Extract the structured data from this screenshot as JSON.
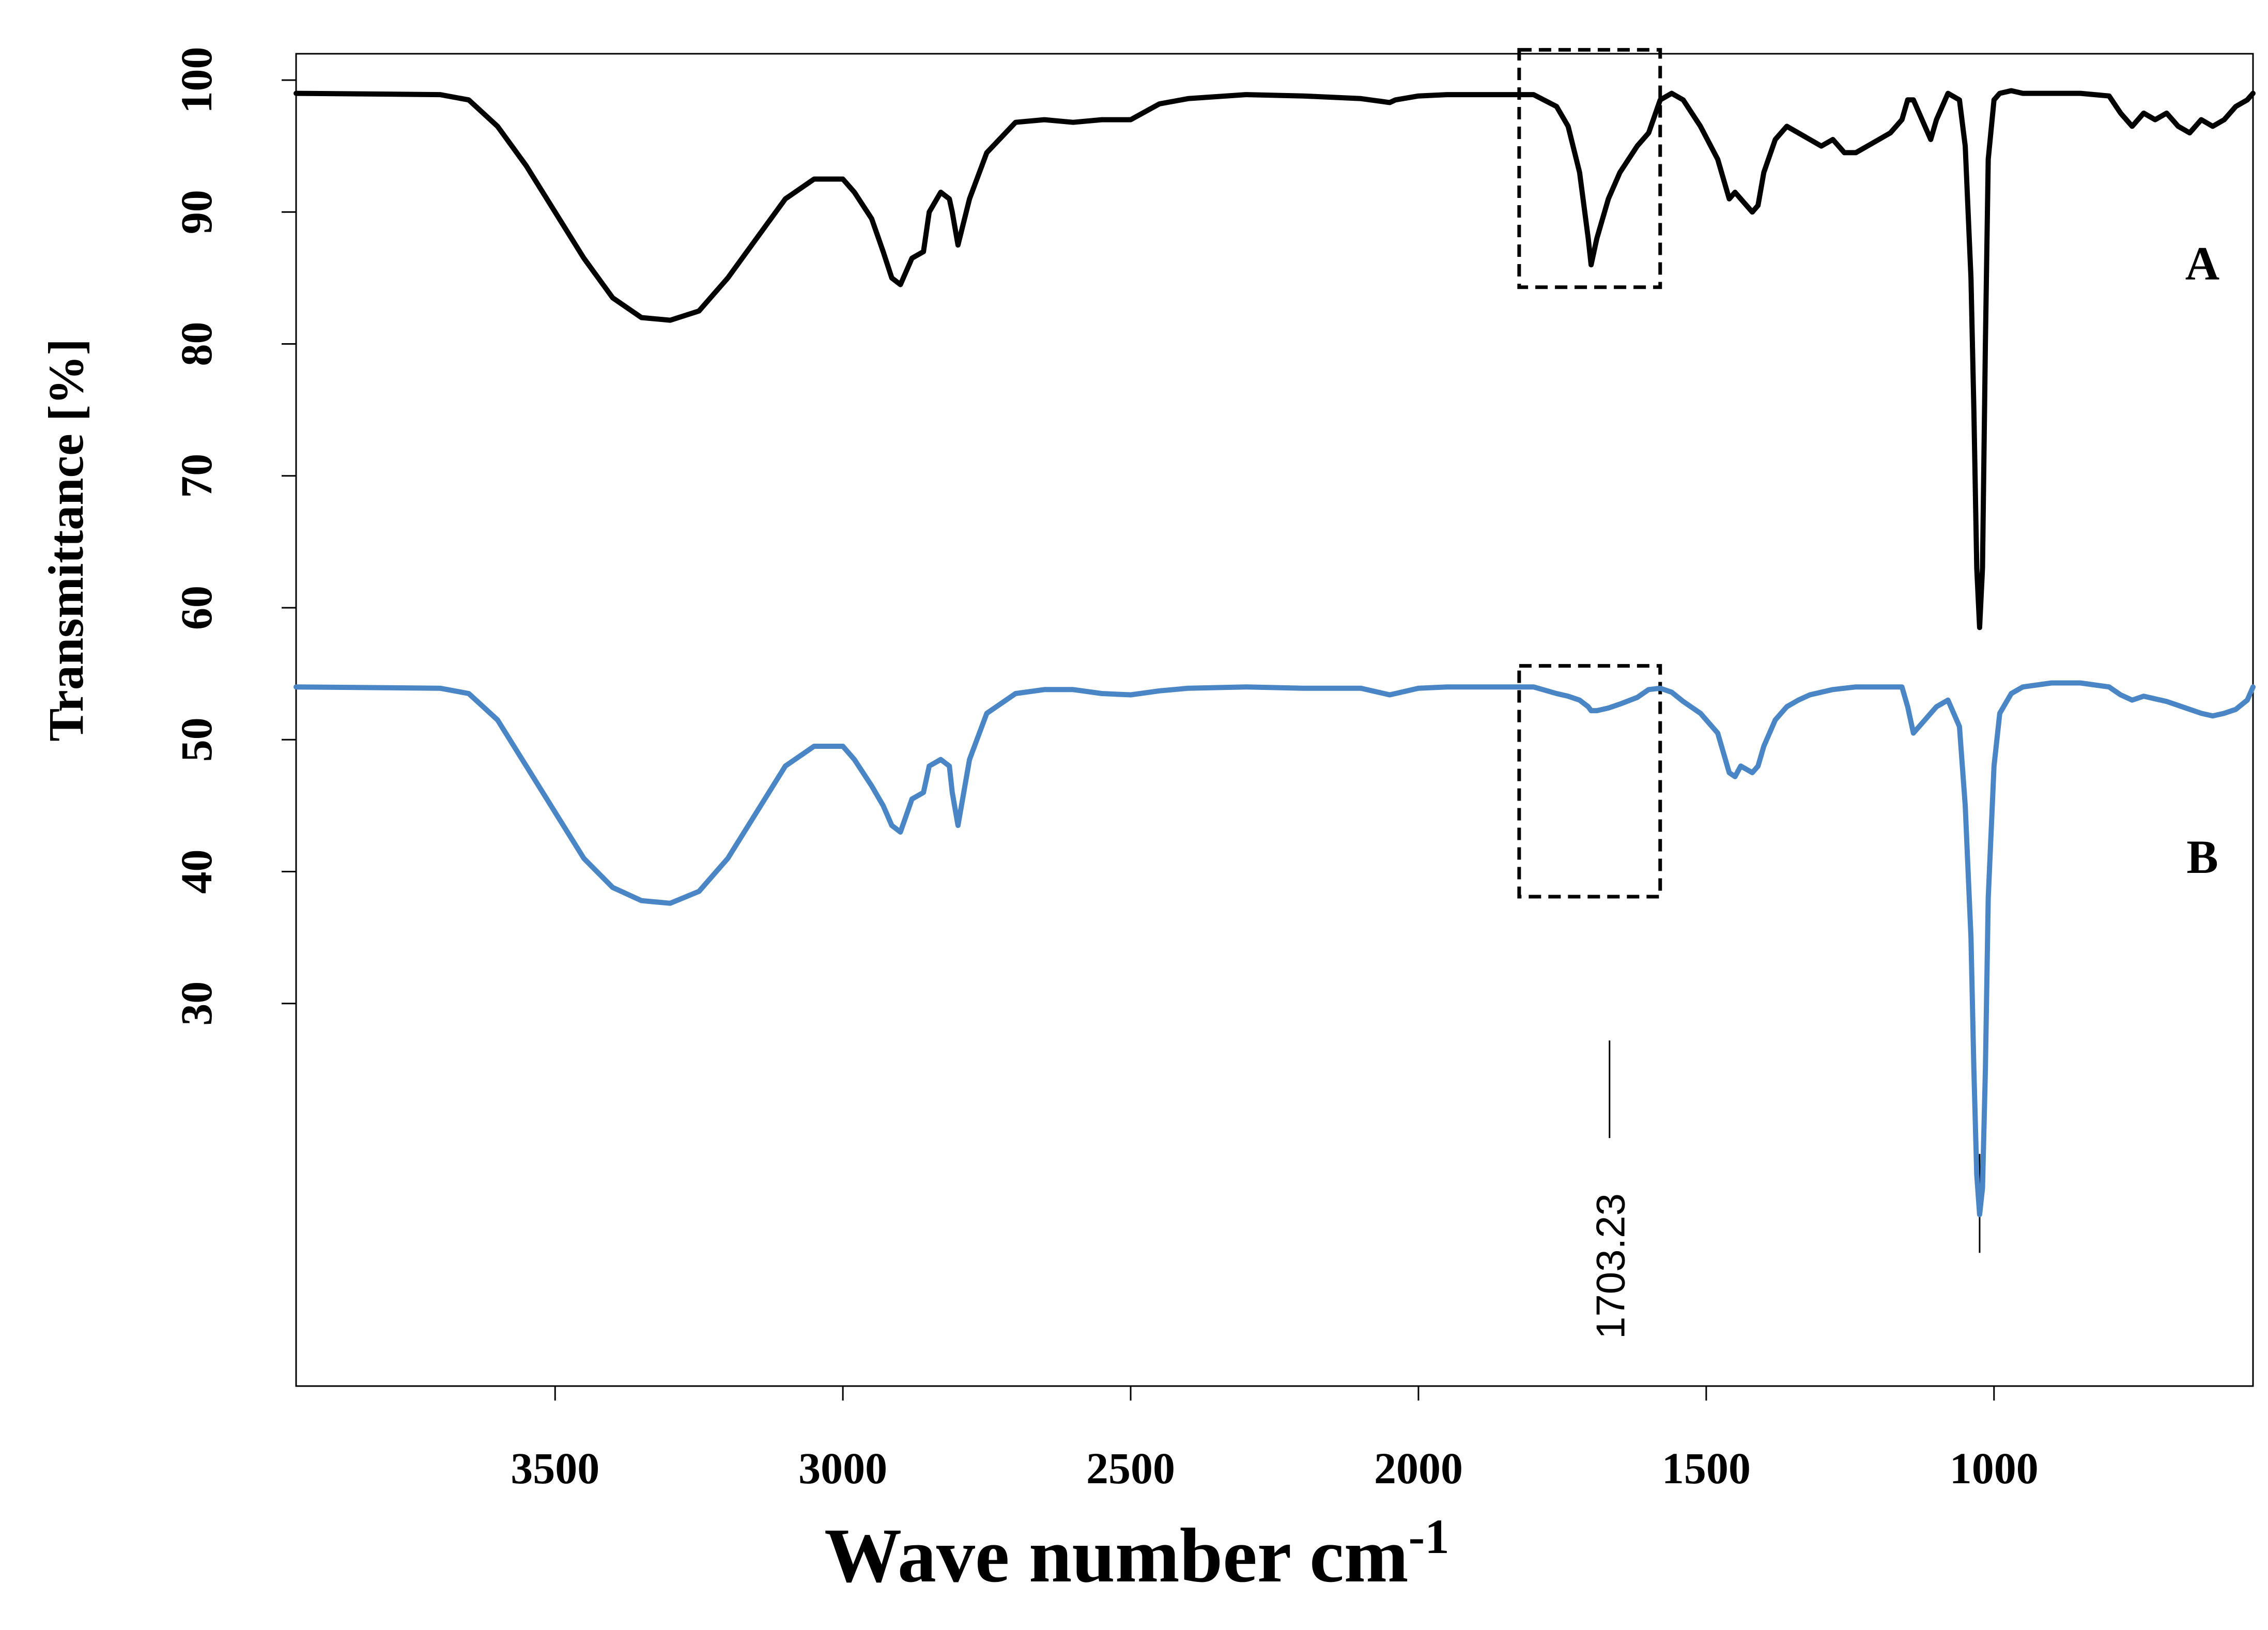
{
  "chart_data": {
    "type": "line",
    "title": "",
    "xlabel": "Wave number cm",
    "xlabel_superscript": "-1",
    "ylabel": "Transmittance [%]",
    "xlim": [
      3950,
      550
    ],
    "ylim": [
      1,
      102
    ],
    "x_reversed": true,
    "grid": false,
    "x_ticks": [
      3500,
      3000,
      2500,
      2000,
      1500,
      1000
    ],
    "x_tick_labels": [
      "3500",
      "3000",
      "2500",
      "2000",
      "1500",
      "1000"
    ],
    "y_ticks": [
      100,
      90,
      80,
      70,
      60,
      50,
      40,
      30
    ],
    "y_tick_labels": [
      "100",
      "90",
      "80",
      "70",
      "60",
      "50",
      "40",
      "30"
    ],
    "series": [
      {
        "name": "A",
        "label": "A",
        "color": "#000000",
        "x": [
          3950,
          3700,
          3650,
          3600,
          3550,
          3500,
          3450,
          3400,
          3350,
          3300,
          3250,
          3200,
          3150,
          3100,
          3050,
          3000,
          2980,
          2950,
          2930,
          2915,
          2900,
          2880,
          2860,
          2850,
          2830,
          2815,
          2810,
          2800,
          2780,
          2750,
          2700,
          2650,
          2600,
          2550,
          2500,
          2450,
          2400,
          2300,
          2200,
          2100,
          2050,
          2040,
          2000,
          1950,
          1850,
          1800,
          1760,
          1740,
          1720,
          1705,
          1700,
          1690,
          1670,
          1650,
          1620,
          1600,
          1580,
          1560,
          1540,
          1510,
          1480,
          1460,
          1450,
          1440,
          1420,
          1410,
          1400,
          1380,
          1360,
          1340,
          1320,
          1300,
          1280,
          1260,
          1240,
          1220,
          1200,
          1180,
          1160,
          1150,
          1140,
          1120,
          1110,
          1100,
          1080,
          1060,
          1050,
          1040,
          1035,
          1030,
          1025,
          1020,
          1015,
          1010,
          1000,
          990,
          970,
          950,
          900,
          850,
          800,
          780,
          760,
          740,
          720,
          700,
          680,
          660,
          640,
          620,
          600,
          580,
          560,
          550
        ],
        "y": [
          99.0,
          98.9,
          98.5,
          96.5,
          93.5,
          90.0,
          86.5,
          83.5,
          82.0,
          81.8,
          82.5,
          85.0,
          88.0,
          91.0,
          92.5,
          92.5,
          91.5,
          89.5,
          87.0,
          85.0,
          84.5,
          86.5,
          87.0,
          90.0,
          91.5,
          91.0,
          90.0,
          87.5,
          91.0,
          94.5,
          96.8,
          97.0,
          96.8,
          97.0,
          97.0,
          98.2,
          98.6,
          98.9,
          98.8,
          98.6,
          98.3,
          98.5,
          98.8,
          98.9,
          98.9,
          98.9,
          98.0,
          96.5,
          93.0,
          88.0,
          86.0,
          88.0,
          91.0,
          93.0,
          95.0,
          96.0,
          98.5,
          99.0,
          98.5,
          96.5,
          94.0,
          91.0,
          91.5,
          91.0,
          90.0,
          90.5,
          93.0,
          95.5,
          96.5,
          96.0,
          95.5,
          95.0,
          95.5,
          94.5,
          94.5,
          95.0,
          95.5,
          96.0,
          97.0,
          98.5,
          98.5,
          96.5,
          95.5,
          97.0,
          99.0,
          98.5,
          95.0,
          85.0,
          75.0,
          63.0,
          58.5,
          63.0,
          80.0,
          94.0,
          98.5,
          99.0,
          99.2,
          99.0,
          99.0,
          99.0,
          98.8,
          97.5,
          96.5,
          97.5,
          97.0,
          97.5,
          96.5,
          96.0,
          97.0,
          96.5,
          97.0,
          98.0,
          98.5,
          99.0
        ]
      },
      {
        "name": "B",
        "label": "B",
        "color": "#4a86c5",
        "x": [
          3950,
          3700,
          3650,
          3600,
          3550,
          3500,
          3450,
          3400,
          3350,
          3300,
          3250,
          3200,
          3150,
          3100,
          3050,
          3000,
          2980,
          2950,
          2930,
          2915,
          2900,
          2880,
          2860,
          2850,
          2830,
          2815,
          2810,
          2800,
          2780,
          2750,
          2700,
          2650,
          2600,
          2550,
          2500,
          2450,
          2400,
          2300,
          2200,
          2100,
          2050,
          2040,
          2000,
          1950,
          1850,
          1800,
          1760,
          1740,
          1720,
          1705,
          1700,
          1690,
          1670,
          1650,
          1620,
          1600,
          1580,
          1560,
          1540,
          1510,
          1480,
          1460,
          1450,
          1440,
          1420,
          1410,
          1400,
          1380,
          1360,
          1340,
          1320,
          1300,
          1280,
          1260,
          1240,
          1220,
          1200,
          1180,
          1160,
          1150,
          1140,
          1120,
          1110,
          1100,
          1080,
          1060,
          1050,
          1040,
          1035,
          1030,
          1025,
          1020,
          1015,
          1010,
          1000,
          990,
          970,
          950,
          900,
          850,
          800,
          780,
          760,
          740,
          720,
          700,
          680,
          660,
          640,
          620,
          600,
          580,
          560,
          550
        ],
        "y": [
          54.0,
          53.9,
          53.5,
          51.5,
          48.0,
          44.5,
          41.0,
          38.8,
          37.8,
          37.6,
          38.5,
          41.0,
          44.5,
          48.0,
          49.5,
          49.5,
          48.5,
          46.5,
          45.0,
          43.5,
          43.0,
          45.5,
          46.0,
          48.0,
          48.5,
          48.0,
          46.0,
          43.5,
          48.5,
          52.0,
          53.5,
          53.8,
          53.8,
          53.5,
          53.4,
          53.7,
          53.9,
          54.0,
          53.9,
          53.9,
          53.4,
          53.5,
          53.9,
          54.0,
          54.0,
          54.0,
          53.5,
          53.3,
          53.0,
          52.5,
          52.2,
          52.2,
          52.4,
          52.7,
          53.2,
          53.8,
          53.9,
          53.6,
          52.9,
          52.0,
          50.5,
          47.5,
          47.2,
          48.0,
          47.5,
          48.0,
          49.5,
          51.5,
          52.5,
          53.0,
          53.4,
          53.6,
          53.8,
          53.9,
          54.0,
          54.0,
          54.0,
          54.0,
          54.0,
          52.5,
          50.5,
          51.5,
          52.0,
          52.5,
          53.0,
          51.0,
          45.0,
          35.0,
          25.0,
          17.0,
          14.0,
          16.0,
          25.0,
          38.0,
          48.0,
          52.0,
          53.5,
          54.0,
          54.3,
          54.3,
          54.0,
          53.4,
          53.0,
          53.3,
          53.1,
          52.9,
          52.6,
          52.3,
          52.0,
          51.8,
          52.0,
          52.3,
          53.0,
          54.0
        ]
      }
    ],
    "annotations": [
      {
        "type": "dashed-box",
        "target": "A",
        "x_range": [
          1825,
          1580
        ],
        "y_range": [
          84.3,
          102.3
        ]
      },
      {
        "type": "dashed-box",
        "target": "B",
        "x_range": [
          1825,
          1580
        ],
        "y_range": [
          38.1,
          55.6
        ]
      },
      {
        "type": "peak-label",
        "text": "1703.23",
        "x": 1668,
        "y_range": [
          19.8,
          27.2
        ]
      },
      {
        "type": "peak-marker",
        "x": 1025,
        "y_range": [
          11.1,
          18.6
        ]
      }
    ]
  }
}
